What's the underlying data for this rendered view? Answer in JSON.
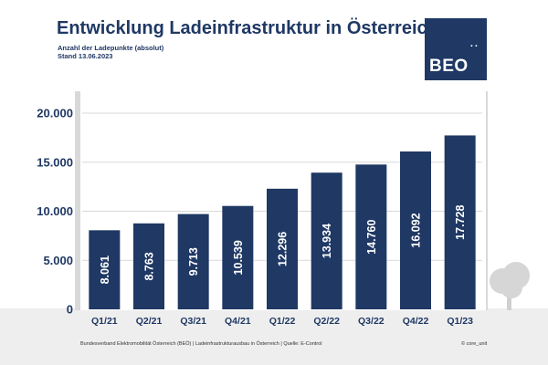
{
  "header": {
    "title": "Entwicklung Ladeinfrastruktur in Österreich",
    "subtitle_line1": "Anzahl der Ladepunkte (absolut)",
    "subtitle_line2": "Stand 13.06.2023"
  },
  "logo": {
    "text": "BEO",
    "dots": "..",
    "color": "#1f3864"
  },
  "footer": {
    "left": "Bundesverband Elektromobilität Österreich (BEÖ) | Ladeinfrastrukturausbau in Österreich | Quelle: E-Control",
    "right": "© core_unit"
  },
  "chart_data": {
    "type": "bar",
    "title": "Entwicklung Ladeinfrastruktur in Österreich",
    "subtitle": "Anzahl der Ladepunkte (absolut)",
    "xlabel": "",
    "ylabel": "",
    "categories": [
      "Q1/21",
      "Q2/21",
      "Q3/21",
      "Q4/21",
      "Q1/22",
      "Q2/22",
      "Q3/22",
      "Q4/22",
      "Q1/23"
    ],
    "values": [
      8061,
      8763,
      9713,
      10539,
      12296,
      13934,
      14760,
      16092,
      17728
    ],
    "value_labels": [
      "8.061",
      "8.763",
      "9.713",
      "10.539",
      "12.296",
      "13.934",
      "14.760",
      "16.092",
      "17.728"
    ],
    "ylim": [
      0,
      20000
    ],
    "yticks": [
      0,
      5000,
      10000,
      15000,
      20000
    ],
    "ytick_labels": [
      "0",
      "5.000",
      "10.000",
      "15.000",
      "20.000"
    ],
    "grid": true,
    "legend": "none",
    "bar_color": "#1f3864",
    "grid_color": "#d9d9d9"
  }
}
